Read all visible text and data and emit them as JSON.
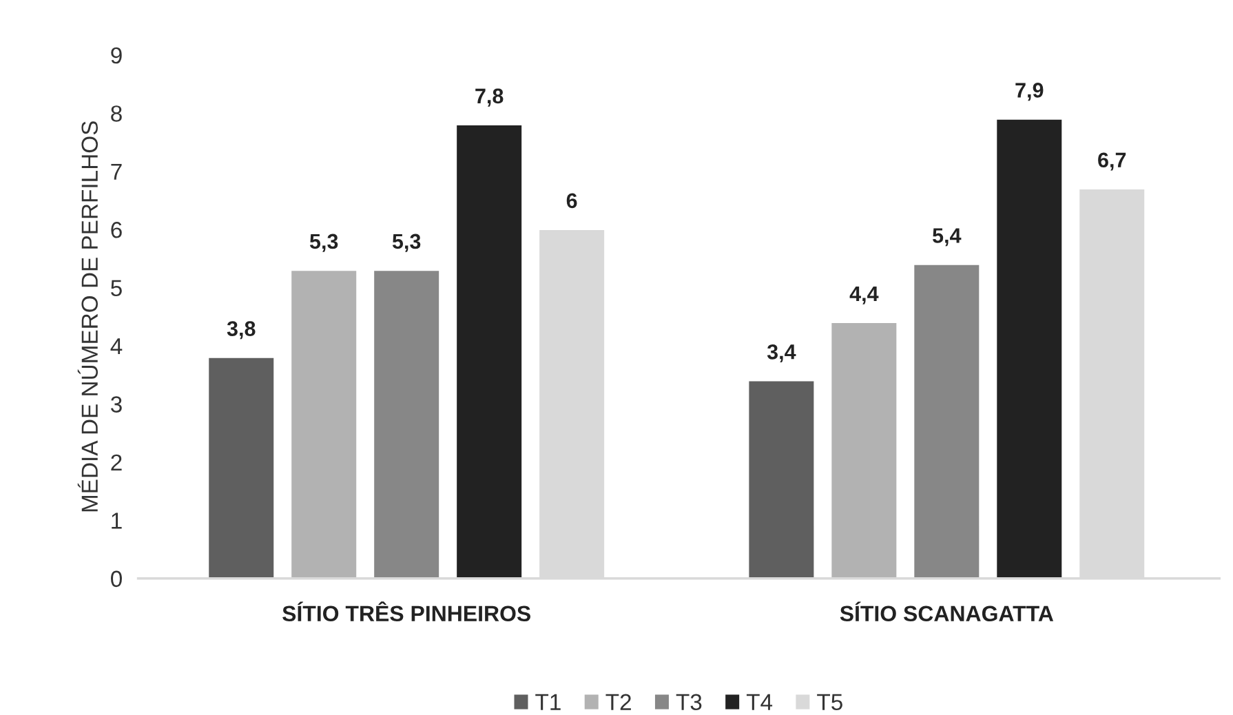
{
  "chart_data": {
    "type": "bar",
    "ylabel": "MÉDIA DE NÚMERO DE PERFILHOS",
    "categories": [
      "SÍTIO TRÊS PINHEIROS",
      "SÍTIO SCANAGATTA"
    ],
    "series": [
      {
        "name": "T1",
        "color": "#5f5f5f",
        "values": [
          3.8,
          3.4
        ],
        "value_labels": [
          "3,8",
          "3,4"
        ]
      },
      {
        "name": "T2",
        "color": "#b2b2b2",
        "values": [
          5.3,
          4.4
        ],
        "value_labels": [
          "5,3",
          "4,4"
        ]
      },
      {
        "name": "T3",
        "color": "#878787",
        "values": [
          5.3,
          5.4
        ],
        "value_labels": [
          "5,3",
          "5,4"
        ]
      },
      {
        "name": "T4",
        "color": "#222222",
        "values": [
          7.8,
          7.9
        ],
        "value_labels": [
          "7,8",
          "7,9"
        ]
      },
      {
        "name": "T5",
        "color": "#d9d9d9",
        "values": [
          6,
          6.7
        ],
        "value_labels": [
          "6",
          "6,7"
        ]
      }
    ],
    "ylim": [
      0,
      9
    ],
    "yticks": [
      0,
      1,
      2,
      3,
      4,
      5,
      6,
      7,
      8,
      9
    ],
    "grid": false,
    "legend": "bottom"
  }
}
